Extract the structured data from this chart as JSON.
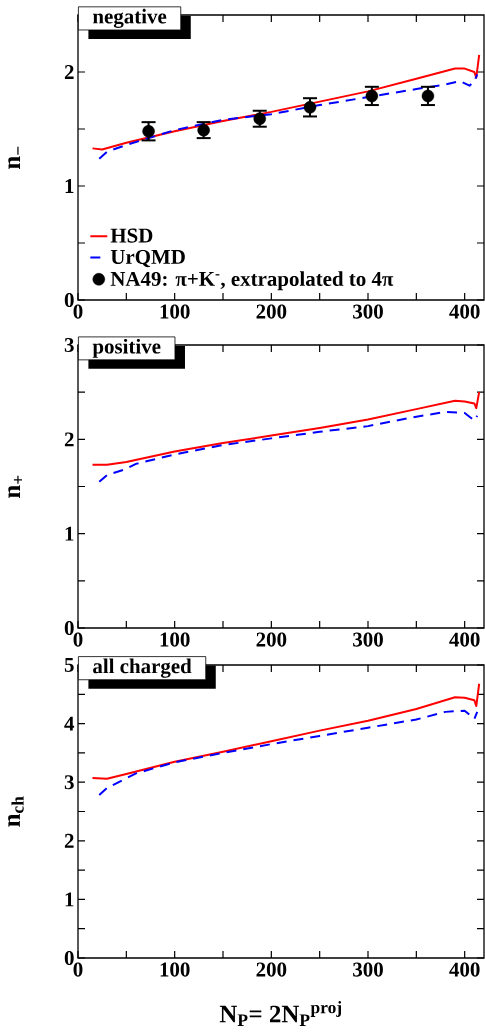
{
  "chart_data": [
    {
      "type": "line",
      "title": "negative",
      "ylabel": "n$_{−}$",
      "xlim": [
        0,
        420
      ],
      "ylim": [
        0,
        2.5
      ],
      "xticks": [
        0,
        {
          "value": 50,
          "label": null
        },
        100,
        {
          "value": 150,
          "label": null
        },
        200,
        {
          "value": 250,
          "label": null
        },
        300,
        {
          "value": 350,
          "label": null
        },
        400
      ],
      "yticks": [
        0,
        {
          "value": 0.5,
          "label": null
        },
        1,
        {
          "value": 1.5,
          "label": null
        },
        2
      ],
      "legend": "bottom left",
      "grid": false,
      "series": [
        {
          "name": "HSD",
          "color": "#ff0000",
          "line_style": "solid",
          "marker": "none",
          "x": [
            15,
            25,
            50,
            100,
            150,
            200,
            250,
            300,
            350,
            390,
            400,
            410,
            412,
            415
          ],
          "values": [
            1.33,
            1.32,
            1.38,
            1.48,
            1.57,
            1.65,
            1.74,
            1.83,
            1.94,
            2.03,
            2.03,
            2.0,
            1.95,
            2.15
          ]
        },
        {
          "name": "UrQMD",
          "color": "#0000ff",
          "line_style": "dashed",
          "marker": "none",
          "x": [
            22,
            30,
            50,
            100,
            150,
            200,
            250,
            300,
            350,
            380,
            395,
            405,
            410,
            413
          ],
          "values": [
            1.24,
            1.3,
            1.36,
            1.49,
            1.58,
            1.63,
            1.71,
            1.78,
            1.85,
            1.89,
            1.92,
            1.88,
            1.92,
            1.98
          ]
        },
        {
          "name": "NA49: π+K$^{-}$, extrapolated to 4π",
          "type": "scatter",
          "color": "#000000",
          "marker": "circle",
          "x": [
            73,
            130,
            188,
            240,
            304,
            362
          ],
          "values": [
            1.48,
            1.49,
            1.59,
            1.69,
            1.79,
            1.79
          ],
          "errors": [
            0.08,
            0.07,
            0.07,
            0.08,
            0.08,
            0.08
          ]
        }
      ]
    },
    {
      "type": "line",
      "title": "positive",
      "ylabel": "n$_{+}$",
      "xlim": [
        0,
        420
      ],
      "ylim": [
        0,
        3
      ],
      "xticks": [
        0,
        {
          "value": 50,
          "label": null
        },
        100,
        {
          "value": 150,
          "label": null
        },
        200,
        {
          "value": 250,
          "label": null
        },
        300,
        {
          "value": 350,
          "label": null
        },
        400
      ],
      "yticks": [
        0,
        {
          "value": 0.5,
          "label": null
        },
        1,
        {
          "value": 1.5,
          "label": null
        },
        2,
        {
          "value": 2.5,
          "label": null
        },
        3
      ],
      "grid": false,
      "series": [
        {
          "color": "#ff0000",
          "line_style": "solid",
          "marker": "none",
          "x": [
            15,
            30,
            50,
            100,
            150,
            200,
            250,
            300,
            350,
            390,
            400,
            410,
            412,
            415
          ],
          "values": [
            1.73,
            1.73,
            1.76,
            1.87,
            1.96,
            2.04,
            2.12,
            2.21,
            2.32,
            2.41,
            2.4,
            2.38,
            2.33,
            2.5
          ]
        },
        {
          "color": "#0000ff",
          "line_style": "dashed",
          "marker": "none",
          "x": [
            22,
            30,
            48,
            60,
            100,
            150,
            200,
            250,
            300,
            350,
            380,
            400,
            410,
            413
          ],
          "values": [
            1.55,
            1.62,
            1.68,
            1.74,
            1.84,
            1.94,
            2.01,
            2.08,
            2.14,
            2.24,
            2.29,
            2.28,
            2.2,
            2.25
          ]
        }
      ]
    },
    {
      "type": "line",
      "title": "all charged",
      "ylabel": "n$_{ch}$",
      "xlabel": "N$_{P}$= 2N$_{P}$$^{proj}$",
      "xlim": [
        0,
        420
      ],
      "ylim": [
        0,
        5
      ],
      "xticks": [
        0,
        {
          "value": 50,
          "label": null
        },
        100,
        {
          "value": 150,
          "label": null
        },
        200,
        {
          "value": 250,
          "label": null
        },
        300,
        {
          "value": 350,
          "label": null
        },
        400
      ],
      "yticks": [
        0,
        {
          "value": 0.5,
          "label": null
        },
        1,
        {
          "value": 1.5,
          "label": null
        },
        2,
        {
          "value": 2.5,
          "label": null
        },
        3,
        {
          "value": 3.5,
          "label": null
        },
        4,
        {
          "value": 4.5,
          "label": null
        },
        5
      ],
      "grid": false,
      "series": [
        {
          "color": "#ff0000",
          "line_style": "solid",
          "marker": "none",
          "x": [
            15,
            30,
            50,
            100,
            150,
            200,
            250,
            300,
            350,
            390,
            400,
            410,
            412,
            415
          ],
          "values": [
            3.07,
            3.06,
            3.14,
            3.35,
            3.52,
            3.7,
            3.88,
            4.05,
            4.25,
            4.45,
            4.44,
            4.4,
            4.3,
            4.68
          ]
        },
        {
          "color": "#0000ff",
          "line_style": "dashed",
          "marker": "none",
          "x": [
            22,
            30,
            48,
            60,
            100,
            150,
            200,
            250,
            300,
            350,
            380,
            400,
            410,
            413
          ],
          "values": [
            2.78,
            2.9,
            3.05,
            3.15,
            3.34,
            3.5,
            3.65,
            3.79,
            3.93,
            4.07,
            4.2,
            4.22,
            4.08,
            4.2
          ]
        }
      ]
    }
  ]
}
